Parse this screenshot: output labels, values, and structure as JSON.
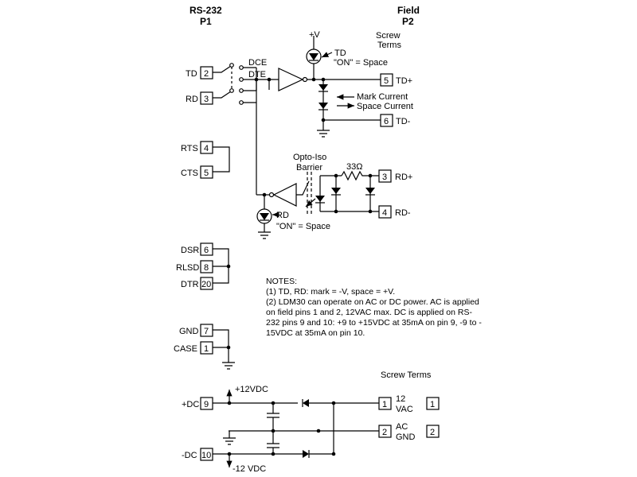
{
  "header": {
    "left_title": "RS-232",
    "left_sub": "P1",
    "right_title": "Field",
    "right_sub": "P2",
    "screw_terms_top_line1": "Screw",
    "screw_terms_top_line2": "Terms"
  },
  "top_section": {
    "supply_label": "+V",
    "td_led_label": "TD",
    "td_led_state": "\"ON\" = Space",
    "dce_label": "DCE",
    "dte_label": "DTE",
    "mark_current": "Mark Current",
    "space_current": "Space Current",
    "opto_label_line1": "Opto-Iso",
    "opto_label_line2": "Barrier",
    "resistor_label": "33Ω",
    "rd_led_label": "RD",
    "rd_led_state": "\"ON\" = Space"
  },
  "left_pins": [
    {
      "label": "TD",
      "num": "2"
    },
    {
      "label": "RD",
      "num": "3"
    },
    {
      "label": "RTS",
      "num": "4"
    },
    {
      "label": "CTS",
      "num": "5"
    },
    {
      "label": "DSR",
      "num": "6"
    },
    {
      "label": "RLSD",
      "num": "8"
    },
    {
      "label": "DTR",
      "num": "20"
    },
    {
      "label": "GND",
      "num": "7"
    },
    {
      "label": "CASE",
      "num": "1"
    },
    {
      "label": "+DC",
      "num": "9"
    },
    {
      "label": "-DC",
      "num": "10"
    }
  ],
  "right_pins": [
    {
      "label": "TD+",
      "num": "5"
    },
    {
      "label": "TD-",
      "num": "6"
    },
    {
      "label": "RD+",
      "num": "3"
    },
    {
      "label": "RD-",
      "num": "4"
    }
  ],
  "notes": {
    "title": "NOTES:",
    "lines": [
      "(1) TD, RD: mark = -V, space = +V.",
      "(2) LDM30 can operate on AC or DC power. AC is applied",
      "on field pins 1 and 2, 12VAC max. DC is applied on RS-",
      "232 pins 9 and 10: +9 to +15VDC at 35mA on pin 9, -9 to -",
      "15VDC at 35mA on pin 10."
    ]
  },
  "power": {
    "screw_terms_label": "Screw Terms",
    "plus_12": "+12VDC",
    "minus_12": "-12 VDC",
    "pins": [
      {
        "num": "1",
        "label_line1": "12",
        "label_line2": "VAC",
        "side_num": "1"
      },
      {
        "num": "2",
        "label_line1": "AC",
        "label_line2": "GND",
        "side_num": "2"
      }
    ]
  }
}
